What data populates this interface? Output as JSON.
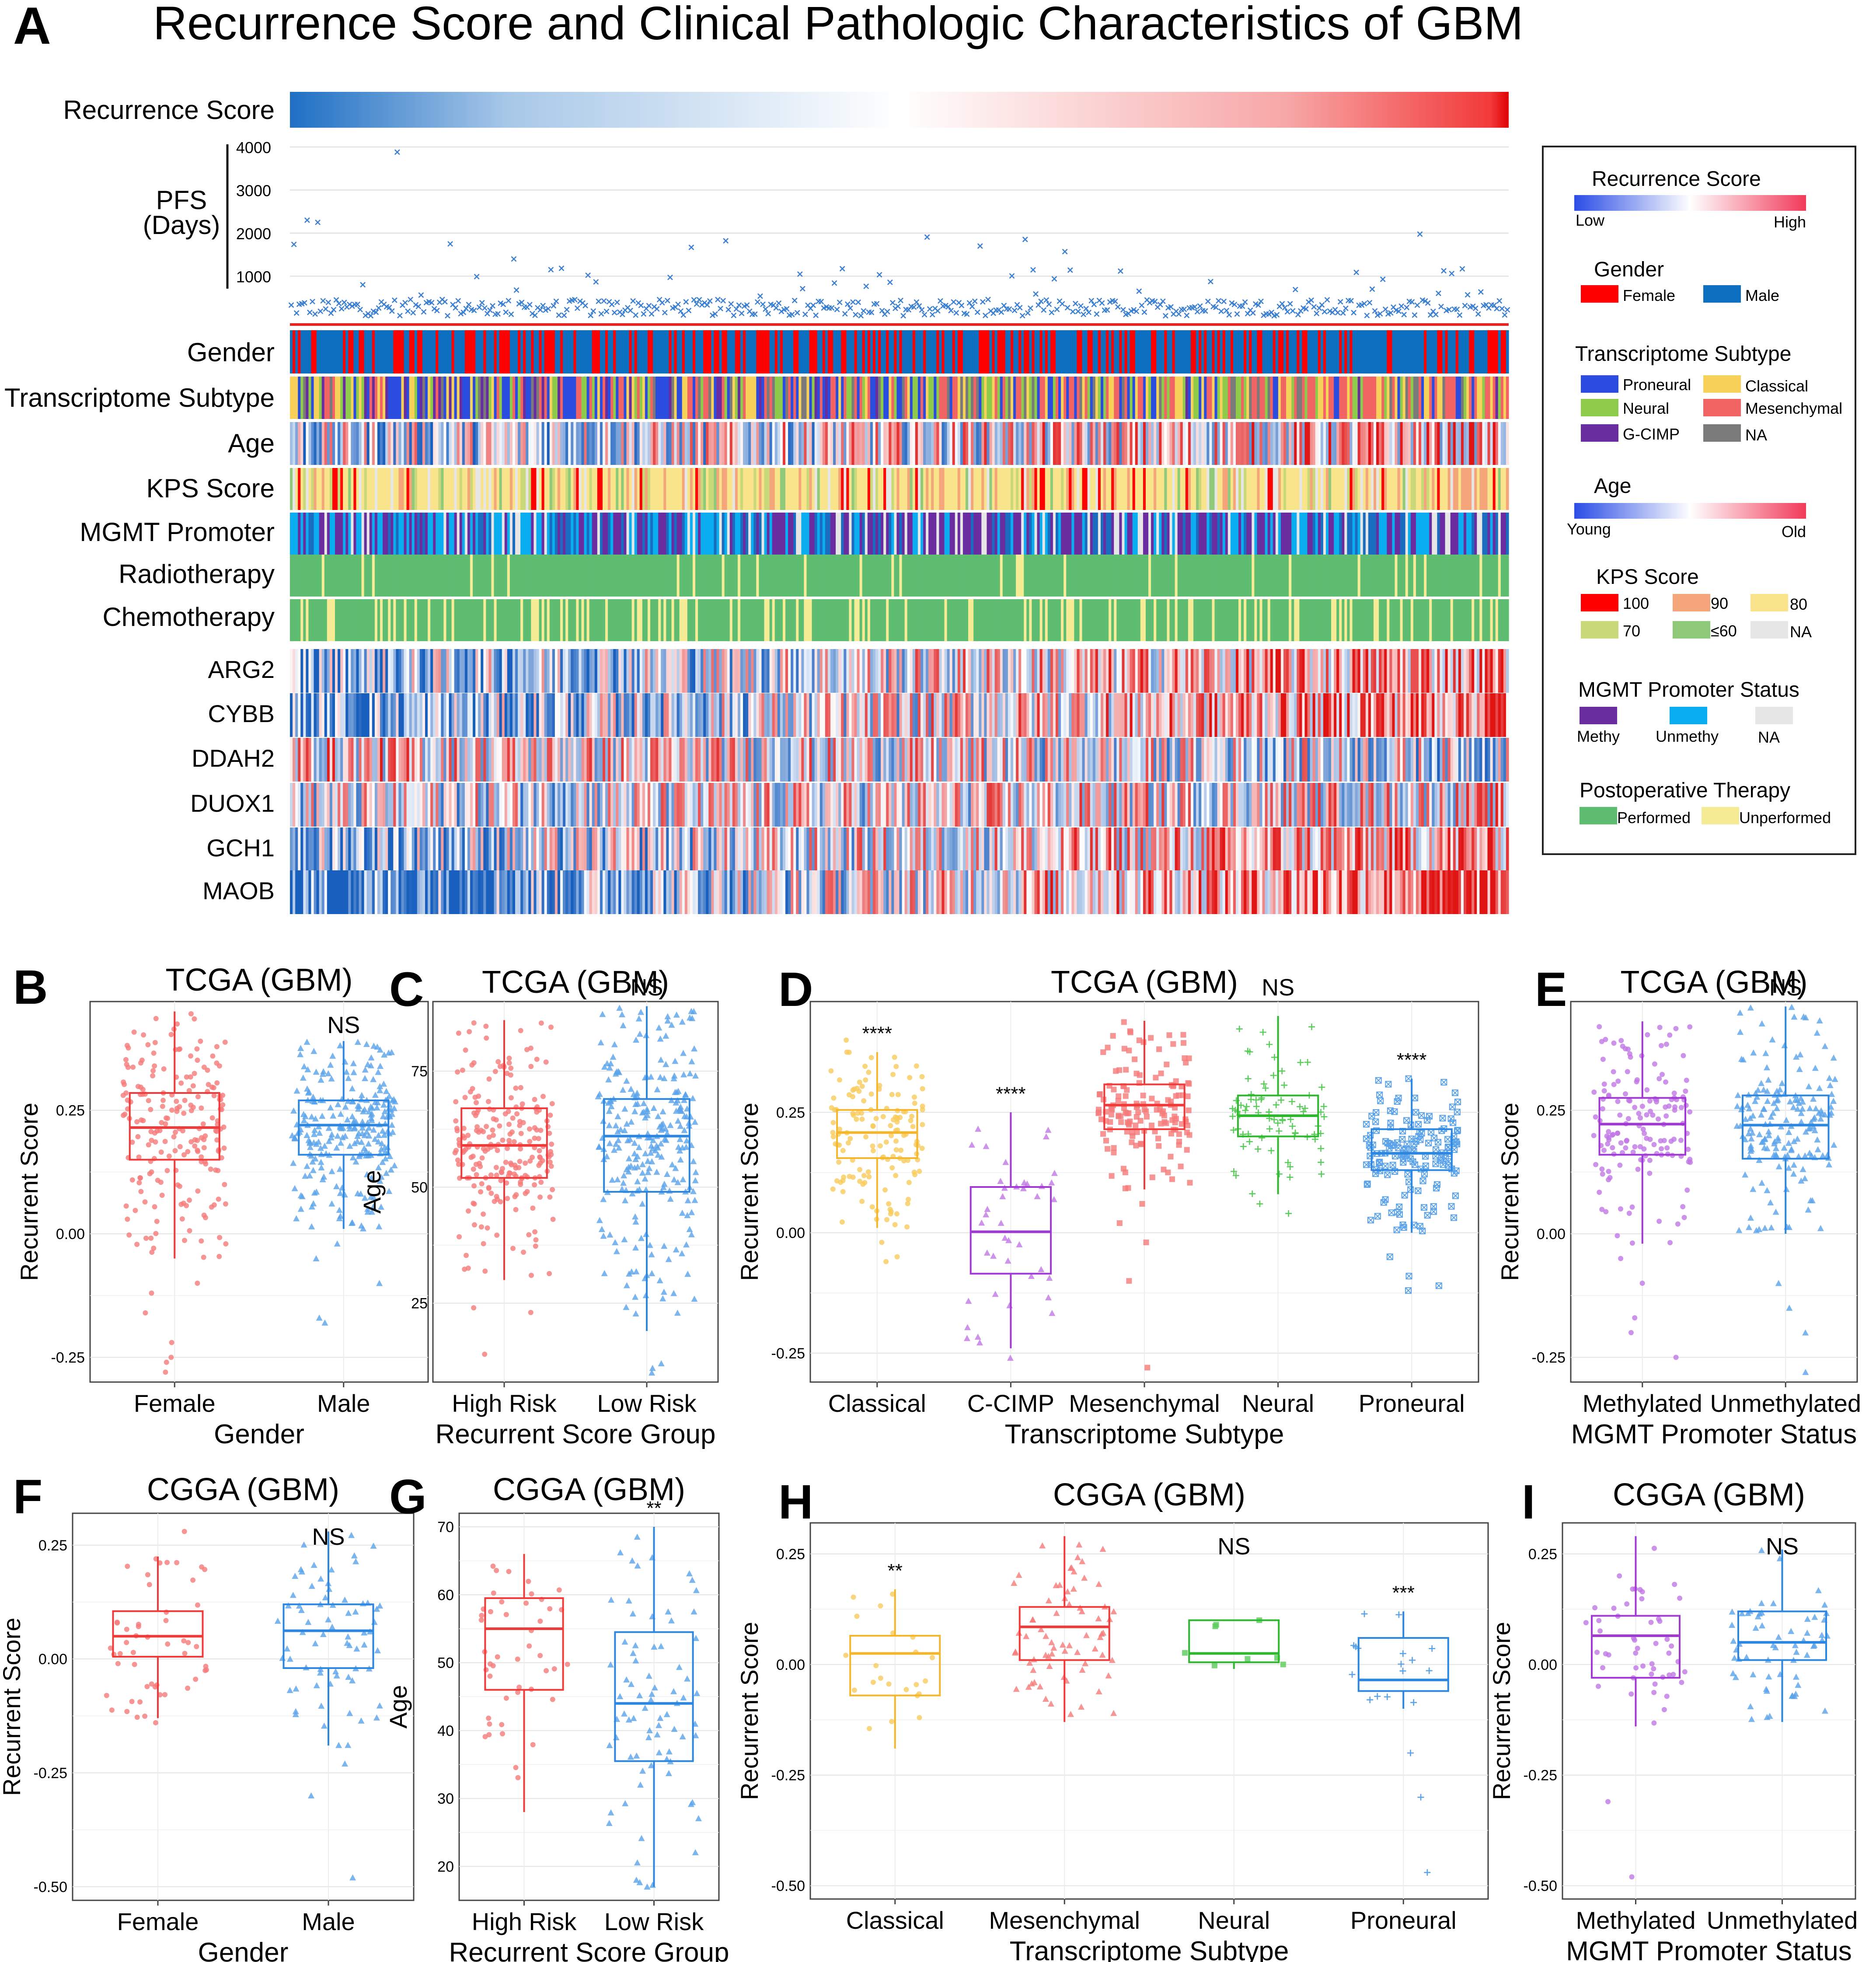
{
  "panel_a": {
    "letter": "A",
    "title": "Recurrence Score and Clinical Pathologic Characteristics of GBM",
    "row_labels": {
      "recurrence": "Recurrence Score",
      "pfs_line1": "PFS",
      "pfs_line2": "(Days)",
      "gender": "Gender",
      "subtype": "Transcriptome Subtype",
      "age": "Age",
      "kps": "KPS Score",
      "mgmt": "MGMT Promoter",
      "radio": "Radiotherapy",
      "chemo": "Chemotherapy"
    },
    "gene_labels": [
      "ARG2",
      "CYBB",
      "DDAH2",
      "DUOX1",
      "GCH1",
      "MAOB"
    ],
    "pfs_ticks": [
      "4000",
      "3000",
      "2000",
      "1000"
    ],
    "legend": {
      "rs_title": "Recurrence Score",
      "rs_low": "Low",
      "rs_high": "High",
      "gender_title": "Gender",
      "female": "Female",
      "male": "Male",
      "subtype_title": "Transcriptome Subtype",
      "proneural": "Proneural",
      "classical": "Classical",
      "neural": "Neural",
      "mesenchymal": "Mesenchymal",
      "gcimp": "G-CIMP",
      "na": "NA",
      "age_title": "Age",
      "young": "Young",
      "old": "Old",
      "kps_title": "KPS Score",
      "k100": "100",
      "k90": "90",
      "k80": "80",
      "k70": "70",
      "k60": "≤60",
      "kna": "NA",
      "mgmt_title": "MGMT Promoter Status",
      "methy": "Methy",
      "unmethy": "Unmethy",
      "mna": "NA",
      "post_title": "Postoperative Therapy",
      "performed": "Performed",
      "unperformed": "Unperformed"
    }
  },
  "colors": {
    "female": "#ff0000",
    "male": "#0c6fc0",
    "proneural": "#2a4de0",
    "classical": "#f7d15a",
    "neural": "#8ecb4a",
    "mesenchymal": "#f26464",
    "gcimp": "#6a2da0",
    "na": "#7a7a7a",
    "k100": "#ff0000",
    "k90": "#f5a57a",
    "k80": "#f9e48c",
    "k70": "#c9d97a",
    "k60": "#8fc97a",
    "kna": "#e6e6e6",
    "methy": "#6a2da0",
    "unmethy": "#0aaef0",
    "mna": "#e6e6e6",
    "performed": "#5fbd72",
    "unperformed": "#f7ec96",
    "box_red": "#f03b3b",
    "box_blue": "#2d86df",
    "box_yellow": "#f4b62c",
    "box_purple": "#a03ad3",
    "box_green": "#2fb82f"
  },
  "chart_data": [
    {
      "id": "B",
      "type": "box",
      "title": "TCGA (GBM)",
      "xlabel": "Gender",
      "ylabel": "Recurrent Score",
      "ylim": [
        -0.3,
        0.47
      ],
      "yticks": [
        "-0.25",
        "0.00",
        "0.25"
      ],
      "ytick_values": [
        -0.25,
        0,
        0.25
      ],
      "categories": [
        "Female",
        "Male"
      ],
      "annotations": [
        "",
        "NS"
      ],
      "boxes": [
        {
          "name": "Female",
          "color": "red",
          "marker": "circle",
          "n": 200,
          "min": -0.05,
          "q1": 0.15,
          "median": 0.215,
          "q3": 0.285,
          "max": 0.45,
          "outliers": [
            -0.1,
            -0.12,
            -0.16,
            -0.22,
            -0.25,
            -0.26,
            -0.28
          ]
        },
        {
          "name": "Male",
          "color": "blue",
          "marker": "triangle",
          "n": 260,
          "min": 0.01,
          "q1": 0.16,
          "median": 0.22,
          "q3": 0.27,
          "max": 0.39,
          "outliers": [
            -0.02,
            -0.05,
            -0.1,
            -0.17,
            -0.18
          ]
        }
      ]
    },
    {
      "id": "C",
      "type": "box",
      "title": "TCGA (GBM)",
      "xlabel": "Recurrent Score Group",
      "ylabel": "Age",
      "ylim": [
        8,
        90
      ],
      "yticks": [
        "25",
        "50",
        "75"
      ],
      "ytick_values": [
        25,
        50,
        75
      ],
      "categories": [
        "High Risk",
        "Low Risk"
      ],
      "annotations": [
        "",
        "NS"
      ],
      "boxes": [
        {
          "name": "High Risk",
          "color": "red",
          "marker": "circle",
          "n": 230,
          "min": 30,
          "q1": 52,
          "median": 59,
          "q3": 67,
          "max": 86,
          "outliers": [
            24,
            23,
            14
          ]
        },
        {
          "name": "Low Risk",
          "color": "blue",
          "marker": "triangle",
          "n": 260,
          "min": 19,
          "q1": 49,
          "median": 61,
          "q3": 69,
          "max": 89,
          "outliers": [
            10,
            11,
            12
          ]
        }
      ]
    },
    {
      "id": "D",
      "type": "box",
      "title": "TCGA (GBM)",
      "xlabel": "Transcriptome Subtype",
      "ylabel": "Recurrent Score",
      "ylim": [
        -0.31,
        0.48
      ],
      "yticks": [
        "-0.25",
        "0.00",
        "0.25"
      ],
      "ytick_values": [
        -0.25,
        0,
        0.25
      ],
      "categories": [
        "Classical",
        "C-CIMP",
        "Mesenchymal",
        "Neural",
        "Proneural"
      ],
      "annotations": [
        "****",
        "****",
        "",
        "NS",
        "****"
      ],
      "boxes": [
        {
          "name": "Classical",
          "color": "yellow",
          "marker": "circle",
          "n": 140,
          "min": 0.01,
          "q1": 0.155,
          "median": 0.208,
          "q3": 0.255,
          "max": 0.375,
          "outliers": [
            -0.02,
            -0.05,
            -0.06,
            0.4
          ]
        },
        {
          "name": "C-CIMP",
          "color": "purple",
          "marker": "triangle",
          "n": 40,
          "min": -0.24,
          "q1": -0.085,
          "median": 0.002,
          "q3": 0.095,
          "max": 0.25,
          "outliers": [
            -0.26
          ]
        },
        {
          "name": "Mesenchymal",
          "color": "red",
          "marker": "square",
          "n": 150,
          "min": 0.09,
          "q1": 0.215,
          "median": 0.265,
          "q3": 0.308,
          "max": 0.44,
          "outliers": [
            0.06,
            0.02,
            -0.02,
            -0.1,
            -0.28
          ]
        },
        {
          "name": "Neural",
          "color": "green",
          "marker": "plus",
          "n": 80,
          "min": 0.08,
          "q1": 0.2,
          "median": 0.243,
          "q3": 0.285,
          "max": 0.45,
          "outliers": [
            0.04,
            0.06
          ]
        },
        {
          "name": "Proneural",
          "color": "blue",
          "marker": "cross",
          "n": 150,
          "min": 0.0,
          "q1": 0.13,
          "median": 0.165,
          "q3": 0.215,
          "max": 0.32,
          "outliers": [
            -0.05,
            -0.09,
            -0.11,
            -0.12
          ]
        }
      ]
    },
    {
      "id": "E",
      "type": "box",
      "title": "TCGA (GBM)",
      "xlabel": "MGMT Promoter Status",
      "ylabel": "Recurrent Score",
      "ylim": [
        -0.3,
        0.47
      ],
      "yticks": [
        "-0.25",
        "0.00",
        "0.25"
      ],
      "ytick_values": [
        -0.25,
        0,
        0.25
      ],
      "categories": [
        "Methylated",
        "Unmethylated"
      ],
      "annotations": [
        "",
        "NS"
      ],
      "boxes": [
        {
          "name": "Methylated",
          "color": "purple",
          "marker": "circle",
          "n": 150,
          "min": -0.02,
          "q1": 0.16,
          "median": 0.222,
          "q3": 0.275,
          "max": 0.43,
          "outliers": [
            -0.05,
            -0.1,
            -0.17,
            -0.2,
            -0.25
          ]
        },
        {
          "name": "Unmethylated",
          "color": "blue",
          "marker": "triangle",
          "n": 180,
          "min": 0.0,
          "q1": 0.152,
          "median": 0.22,
          "q3": 0.28,
          "max": 0.46,
          "outliers": [
            -0.1,
            -0.15,
            -0.2,
            -0.28
          ]
        }
      ]
    },
    {
      "id": "F",
      "type": "box",
      "title": "CGGA (GBM)",
      "xlabel": "Gender",
      "ylabel": "Recurrent Score",
      "ylim": [
        -0.53,
        0.32
      ],
      "yticks": [
        "-0.50",
        "-0.25",
        "0.00",
        "0.25"
      ],
      "ytick_values": [
        -0.5,
        -0.25,
        0,
        0.25
      ],
      "categories": [
        "Female",
        "Male"
      ],
      "annotations": [
        "",
        "NS"
      ],
      "boxes": [
        {
          "name": "Female",
          "color": "red",
          "marker": "circle",
          "n": 50,
          "min": -0.13,
          "q1": 0.005,
          "median": 0.05,
          "q3": 0.105,
          "max": 0.225,
          "outliers": [
            0.28,
            -0.14
          ]
        },
        {
          "name": "Male",
          "color": "blue",
          "marker": "triangle",
          "n": 70,
          "min": -0.19,
          "q1": -0.02,
          "median": 0.062,
          "q3": 0.12,
          "max": 0.28,
          "outliers": [
            -0.23,
            -0.3,
            -0.48
          ]
        }
      ]
    },
    {
      "id": "G",
      "type": "box",
      "title": "CGGA (GBM)",
      "xlabel": "Recurrent Score Group",
      "ylabel": "Age",
      "ylim": [
        15,
        72
      ],
      "yticks": [
        "20",
        "30",
        "40",
        "50",
        "60",
        "70"
      ],
      "ytick_values": [
        20,
        30,
        40,
        50,
        60,
        70
      ],
      "categories": [
        "High Risk",
        "Low Risk"
      ],
      "annotations": [
        "",
        "**"
      ],
      "boxes": [
        {
          "name": "High Risk",
          "color": "red",
          "marker": "circle",
          "n": 45,
          "min": 28,
          "q1": 46,
          "median": 55,
          "q3": 59.5,
          "max": 66,
          "outliers": []
        },
        {
          "name": "Low Risk",
          "color": "blue",
          "marker": "triangle",
          "n": 75,
          "min": 17,
          "q1": 35.5,
          "median": 44,
          "q3": 54.5,
          "max": 70,
          "outliers": [
            17,
            18
          ]
        }
      ]
    },
    {
      "id": "H",
      "type": "box",
      "title": "CGGA (GBM)",
      "xlabel": "Transcriptome Subtype",
      "ylabel": "Recurrent Score",
      "ylim": [
        -0.53,
        0.32
      ],
      "yticks": [
        "-0.50",
        "-0.25",
        "0.00",
        "0.25"
      ],
      "ytick_values": [
        -0.5,
        -0.25,
        0,
        0.25
      ],
      "categories": [
        "Classical",
        "Mesenchymal",
        "Neural",
        "Proneural"
      ],
      "annotations": [
        "**",
        "",
        "NS",
        "***"
      ],
      "boxes": [
        {
          "name": "Classical",
          "color": "yellow",
          "marker": "circle",
          "n": 22,
          "min": -0.19,
          "q1": -0.07,
          "median": 0.025,
          "q3": 0.065,
          "max": 0.17,
          "outliers": []
        },
        {
          "name": "Mesenchymal",
          "color": "red",
          "marker": "triangle",
          "n": 70,
          "min": -0.13,
          "q1": 0.01,
          "median": 0.085,
          "q3": 0.13,
          "max": 0.29,
          "outliers": []
        },
        {
          "name": "Neural",
          "color": "green",
          "marker": "square",
          "n": 8,
          "min": -0.01,
          "q1": 0.005,
          "median": 0.025,
          "q3": 0.1,
          "max": 0.1,
          "outliers": []
        },
        {
          "name": "Proneural",
          "color": "blue",
          "marker": "plus",
          "n": 16,
          "min": -0.1,
          "q1": -0.06,
          "median": -0.035,
          "q3": 0.06,
          "max": 0.12,
          "outliers": [
            -0.2,
            -0.3,
            -0.47
          ]
        }
      ]
    },
    {
      "id": "I",
      "type": "box",
      "title": "CGGA (GBM)",
      "xlabel": "MGMT Promoter Status",
      "ylabel": "Recurrent Score",
      "ylim": [
        -0.53,
        0.32
      ],
      "yticks": [
        "-0.50",
        "-0.25",
        "0.00",
        "0.25"
      ],
      "ytick_values": [
        -0.5,
        -0.25,
        0,
        0.25
      ],
      "categories": [
        "Methylated",
        "Unmethylated"
      ],
      "annotations": [
        "",
        "NS"
      ],
      "boxes": [
        {
          "name": "Methylated",
          "color": "purple",
          "marker": "circle",
          "n": 50,
          "min": -0.14,
          "q1": -0.03,
          "median": 0.065,
          "q3": 0.11,
          "max": 0.29,
          "outliers": [
            -0.31,
            -0.48
          ]
        },
        {
          "name": "Unmethylated",
          "color": "blue",
          "marker": "triangle",
          "n": 60,
          "min": -0.13,
          "q1": 0.01,
          "median": 0.05,
          "q3": 0.12,
          "max": 0.26,
          "outliers": []
        }
      ]
    }
  ]
}
